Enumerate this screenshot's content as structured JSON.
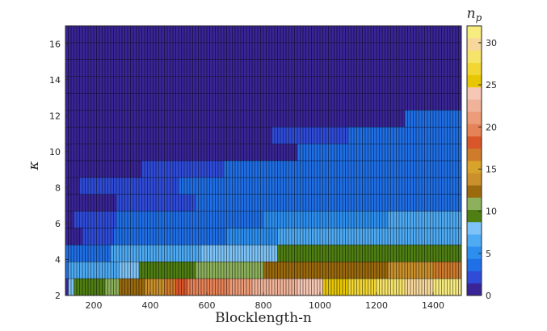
{
  "chart_data": {
    "type": "heatmap",
    "xlabel": "Blocklength-n",
    "ylabel": "κ",
    "colorbar_label": "n_p",
    "xlim": [
      100,
      1500
    ],
    "ylim": [
      2,
      17
    ],
    "x_ticks": [
      200,
      400,
      600,
      800,
      1000,
      1200,
      1400
    ],
    "y_ticks": [
      2,
      4,
      6,
      8,
      10,
      12,
      14,
      16
    ],
    "colorbar_ticks": [
      0,
      5,
      10,
      15,
      20,
      25,
      30
    ],
    "colorbar_range": [
      0,
      32
    ],
    "x_step": 10,
    "kappa_rows": [
      2,
      3,
      4,
      5,
      6,
      7,
      8,
      9,
      10,
      11,
      12,
      13,
      14,
      15,
      16,
      17
    ],
    "colormap": [
      "#3a2597",
      "#2f4bd8",
      "#1f6fe6",
      "#2c8ff0",
      "#4eaaf3",
      "#7dc3f7",
      "#4f7f12",
      "#8cb05c",
      "#9a6a0c",
      "#c9902b",
      "#d8a32b",
      "#cf7b2c",
      "#d9562a",
      "#e68257",
      "#ec9c78",
      "#f0b399",
      "#f6c7b4",
      "#e7c703",
      "#f2d634",
      "#f6e36a",
      "#f7d79b",
      "#f7ec80"
    ],
    "rows": [
      {
        "kappa": 2,
        "segments": [
          {
            "x_end": 110,
            "value": 0
          },
          {
            "x_end": 130,
            "value": 8
          },
          {
            "x_end": 200,
            "value": 9
          },
          {
            "x_end": 240,
            "value": 10
          },
          {
            "x_end": 290,
            "value": 11
          },
          {
            "x_end": 330,
            "value": 12
          },
          {
            "x_end": 380,
            "value": 13
          },
          {
            "x_end": 450,
            "value": 14
          },
          {
            "x_end": 490,
            "value": 17
          },
          {
            "x_end": 530,
            "value": 18
          },
          {
            "x_end": 620,
            "value": 19
          },
          {
            "x_end": 680,
            "value": 20
          },
          {
            "x_end": 760,
            "value": 21
          },
          {
            "x_end": 830,
            "value": 22
          },
          {
            "x_end": 920,
            "value": 23
          },
          {
            "x_end": 1010,
            "value": 24
          },
          {
            "x_end": 1100,
            "value": 26
          },
          {
            "x_end": 1200,
            "value": 27
          },
          {
            "x_end": 1300,
            "value": 29
          },
          {
            "x_end": 1400,
            "value": 30
          },
          {
            "x_end": 1500,
            "value": 31
          }
        ]
      },
      {
        "kappa": 3,
        "segments": [
          {
            "x_end": 110,
            "value": 4
          },
          {
            "x_end": 290,
            "value": 6
          },
          {
            "x_end": 360,
            "value": 8
          },
          {
            "x_end": 560,
            "value": 10
          },
          {
            "x_end": 800,
            "value": 11
          },
          {
            "x_end": 1020,
            "value": 12
          },
          {
            "x_end": 1240,
            "value": 13
          },
          {
            "x_end": 1400,
            "value": 14
          },
          {
            "x_end": 1500,
            "value": 16
          }
        ]
      },
      {
        "kappa": 4,
        "segments": [
          {
            "x_end": 170,
            "value": 3
          },
          {
            "x_end": 260,
            "value": 4
          },
          {
            "x_end": 460,
            "value": 6
          },
          {
            "x_end": 580,
            "value": 7
          },
          {
            "x_end": 850,
            "value": 8
          },
          {
            "x_end": 1130,
            "value": 9
          },
          {
            "x_end": 1500,
            "value": 10
          }
        ]
      },
      {
        "kappa": 5,
        "segments": [
          {
            "x_end": 160,
            "value": 1
          },
          {
            "x_end": 270,
            "value": 2
          },
          {
            "x_end": 400,
            "value": 3
          },
          {
            "x_end": 670,
            "value": 4
          },
          {
            "x_end": 850,
            "value": 5
          },
          {
            "x_end": 1100,
            "value": 6
          },
          {
            "x_end": 1500,
            "value": 7
          }
        ]
      },
      {
        "kappa": 6,
        "segments": [
          {
            "x_end": 130,
            "value": 1
          },
          {
            "x_end": 280,
            "value": 2
          },
          {
            "x_end": 430,
            "value": 3
          },
          {
            "x_end": 800,
            "value": 4
          },
          {
            "x_end": 1240,
            "value": 5
          },
          {
            "x_end": 1500,
            "value": 6
          }
        ]
      },
      {
        "kappa": 7,
        "segments": [
          {
            "x_end": 110,
            "value": 0
          },
          {
            "x_end": 280,
            "value": 1
          },
          {
            "x_end": 560,
            "value": 2
          },
          {
            "x_end": 770,
            "value": 3
          },
          {
            "x_end": 1500,
            "value": 4
          }
        ]
      },
      {
        "kappa": 8,
        "segments": [
          {
            "x_end": 110,
            "value": 0
          },
          {
            "x_end": 150,
            "value": 1
          },
          {
            "x_end": 500,
            "value": 2
          },
          {
            "x_end": 570,
            "value": 3
          },
          {
            "x_end": 1500,
            "value": 4
          }
        ]
      },
      {
        "kappa": 9,
        "segments": [
          {
            "x_end": 140,
            "value": 0
          },
          {
            "x_end": 370,
            "value": 1
          },
          {
            "x_end": 660,
            "value": 2
          },
          {
            "x_end": 1110,
            "value": 3
          },
          {
            "x_end": 1500,
            "value": 4
          }
        ]
      },
      {
        "kappa": 10,
        "segments": [
          {
            "x_end": 150,
            "value": 0
          },
          {
            "x_end": 920,
            "value": 1
          },
          {
            "x_end": 1430,
            "value": 3
          },
          {
            "x_end": 1500,
            "value": 4
          }
        ]
      },
      {
        "kappa": 11,
        "segments": [
          {
            "x_end": 170,
            "value": 0
          },
          {
            "x_end": 830,
            "value": 1
          },
          {
            "x_end": 1100,
            "value": 2
          },
          {
            "x_end": 1500,
            "value": 3
          }
        ]
      },
      {
        "kappa": 12,
        "segments": [
          {
            "x_end": 220,
            "value": 0
          },
          {
            "x_end": 1300,
            "value": 1
          },
          {
            "x_end": 1500,
            "value": 3
          }
        ]
      },
      {
        "kappa": 13,
        "segments": [
          {
            "x_end": 320,
            "value": 0
          },
          {
            "x_end": 1500,
            "value": 1
          }
        ]
      },
      {
        "kappa": 14,
        "segments": [
          {
            "x_end": 360,
            "value": 0
          },
          {
            "x_end": 1500,
            "value": 1
          }
        ]
      },
      {
        "kappa": 15,
        "segments": [
          {
            "x_end": 410,
            "value": 0
          },
          {
            "x_end": 1500,
            "value": 1
          }
        ]
      },
      {
        "kappa": 16,
        "segments": [
          {
            "x_end": 460,
            "value": 0
          },
          {
            "x_end": 1500,
            "value": 1
          }
        ]
      },
      {
        "kappa": 17,
        "segments": [
          {
            "x_end": 530,
            "value": 0
          },
          {
            "x_end": 1500,
            "value": 1
          }
        ]
      }
    ]
  }
}
